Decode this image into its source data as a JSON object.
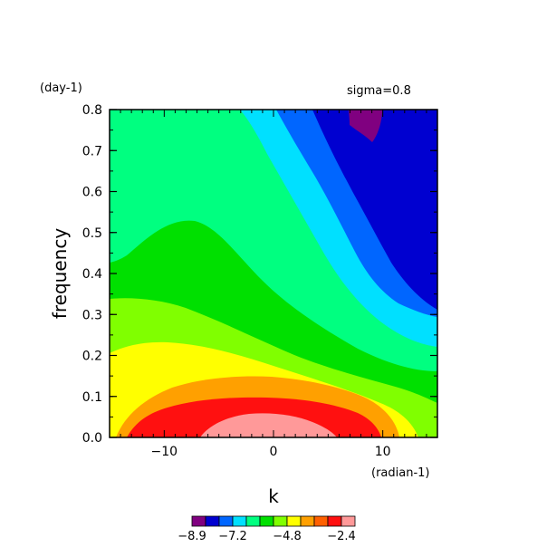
{
  "chart_data": {
    "type": "heatmap",
    "title": "sigma=0.8",
    "xlabel": "k",
    "ylabel": "frequency",
    "x_unit": "(radian-1)",
    "y_unit": "(day-1)",
    "xlim": [
      -15,
      15
    ],
    "ylim": [
      0,
      0.8
    ],
    "x_ticks": [
      -10,
      0,
      10
    ],
    "y_ticks": [
      "0.0",
      "0.1",
      "0.2",
      "0.3",
      "0.4",
      "0.5",
      "0.6",
      "0.7",
      "0.8"
    ],
    "levels": [
      -8.9,
      -8.3,
      -7.7,
      -7.2,
      -6.6,
      -6.0,
      -5.4,
      -4.8,
      -4.2,
      -3.6,
      -3.0,
      -2.4,
      -1.8
    ],
    "level_colors": [
      "#800080",
      "#0000d0",
      "#0066ff",
      "#00e0ff",
      "#00ff80",
      "#00e000",
      "#80ff00",
      "#ffff00",
      "#ffa000",
      "#ff6000",
      "#ff1010",
      "#ff9999"
    ],
    "colorbar_ticks": [
      "-8.9",
      "-7.2",
      "-4.8",
      "-2.4"
    ],
    "colorbar_tick_index": [
      0,
      3,
      7,
      11
    ],
    "regions": [
      {
        "level_index": 5,
        "label": "green band 0.2-0.45"
      },
      {
        "level_index": 4,
        "label": "spring green upper-left"
      },
      {
        "level_index": 3,
        "label": "cyan diagonal band"
      },
      {
        "level_index": 2,
        "label": "medium blue band"
      },
      {
        "level_index": 1,
        "label": "dark blue upper-right"
      },
      {
        "level_index": 0,
        "label": "purple minimum near k=9, f=0.8"
      },
      {
        "level_index": 6,
        "label": "yellow-green band"
      },
      {
        "level_index": 7,
        "label": "yellow band"
      },
      {
        "level_index": 8,
        "label": "orange band"
      },
      {
        "level_index": 10,
        "label": "red band"
      },
      {
        "level_index": 11,
        "label": "pink maximum near k=0, f=0"
      }
    ]
  }
}
